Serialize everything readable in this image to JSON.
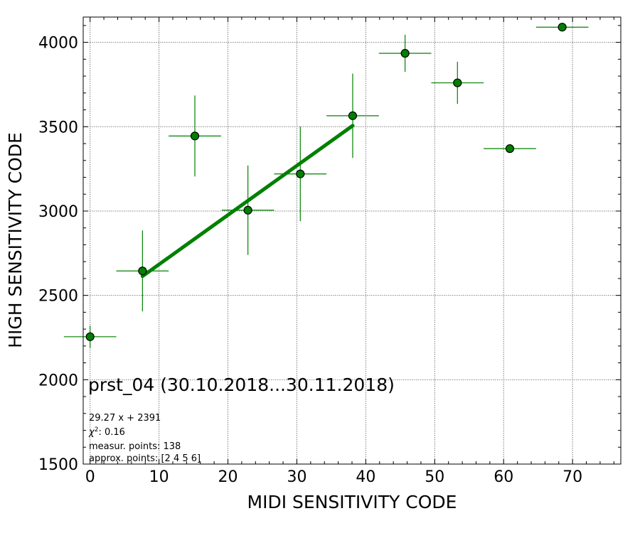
{
  "chart_data": {
    "type": "scatter",
    "title": "prst_04 (30.10.2018...30.11.2018)",
    "xlabel": "MIDI SENSITIVITY CODE",
    "ylabel": "HIGH SENSITIVITY CODE",
    "xlim": [
      -1,
      77
    ],
    "ylim": [
      1500,
      4150
    ],
    "xticks": [
      0,
      10,
      20,
      30,
      40,
      50,
      60,
      70
    ],
    "yticks": [
      1500,
      2000,
      2500,
      3000,
      3500,
      4000
    ],
    "grid": true,
    "colors": {
      "points": "#008000",
      "errorbars": "#008000",
      "fit": "#008000",
      "marker_edge": "#000000"
    },
    "points": [
      {
        "x": 0.0,
        "y": 2255,
        "xerr": 3.8,
        "yerr": 65
      },
      {
        "x": 7.6,
        "y": 2645,
        "xerr": 3.8,
        "yerr": 240
      },
      {
        "x": 15.2,
        "y": 3445,
        "xerr": 3.8,
        "yerr": 240
      },
      {
        "x": 22.9,
        "y": 3005,
        "xerr": 3.8,
        "yerr": 265
      },
      {
        "x": 30.5,
        "y": 3220,
        "xerr": 3.8,
        "yerr": 280
      },
      {
        "x": 38.1,
        "y": 3565,
        "xerr": 3.8,
        "yerr": 250
      },
      {
        "x": 45.7,
        "y": 3935,
        "xerr": 3.8,
        "yerr": 110
      },
      {
        "x": 53.3,
        "y": 3760,
        "xerr": 3.8,
        "yerr": 125
      },
      {
        "x": 60.9,
        "y": 3370,
        "xerr": 3.8,
        "yerr": 0
      },
      {
        "x": 68.5,
        "y": 4090,
        "xerr": 3.8,
        "yerr": 0
      }
    ],
    "fit": {
      "x_start": 7.6,
      "x_end": 38.1,
      "slope": 29.27,
      "intercept": 2391
    },
    "annotations": {
      "fit_equation": "29.27 x + 2391",
      "chi2_label": "χ",
      "chi2_value": ": 0.16",
      "measur_points": "measur. points: 138",
      "approx_points": "approx. points: [2 4 5 6]"
    }
  }
}
